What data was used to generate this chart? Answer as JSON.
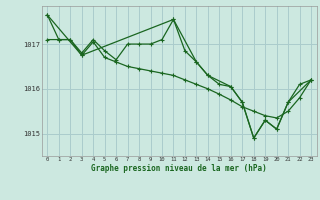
{
  "title": "Graphe pression niveau de la mer (hPa)",
  "bg_color": "#cce8e0",
  "grid_color": "#aacccc",
  "line_color": "#1a6620",
  "xlim": [
    -0.5,
    23.5
  ],
  "ylim": [
    1014.5,
    1017.85
  ],
  "yticks": [
    1015,
    1016,
    1017
  ],
  "xticks": [
    0,
    1,
    2,
    3,
    4,
    5,
    6,
    7,
    8,
    9,
    10,
    11,
    12,
    13,
    14,
    15,
    16,
    17,
    18,
    19,
    20,
    21,
    22,
    23
  ],
  "series1_x": [
    0,
    1,
    2,
    3,
    4,
    5,
    6,
    7,
    8,
    9,
    10,
    11,
    12,
    13,
    14,
    15,
    16,
    17,
    18,
    19,
    20,
    21,
    22,
    23
  ],
  "series1_y": [
    1017.65,
    1017.1,
    1017.1,
    1016.8,
    1017.1,
    1016.85,
    1016.65,
    1017.0,
    1017.0,
    1017.0,
    1017.1,
    1017.55,
    1016.85,
    1016.6,
    1016.3,
    1016.1,
    1016.05,
    1015.7,
    1014.9,
    1015.3,
    1015.1,
    1015.7,
    1016.1,
    1016.2
  ],
  "series2_x": [
    0,
    1,
    2,
    3,
    4,
    5,
    6,
    7,
    8,
    9,
    10,
    11,
    12,
    13,
    14,
    15,
    16,
    17,
    18,
    19,
    20,
    21,
    22,
    23
  ],
  "series2_y": [
    1017.1,
    1017.1,
    1017.1,
    1016.75,
    1017.05,
    1016.7,
    1016.6,
    1016.5,
    1016.45,
    1016.4,
    1016.35,
    1016.3,
    1016.2,
    1016.1,
    1016.0,
    1015.88,
    1015.75,
    1015.6,
    1015.5,
    1015.4,
    1015.35,
    1015.5,
    1015.8,
    1016.2
  ],
  "series3_x": [
    0,
    3,
    11,
    13,
    14,
    16,
    17,
    18,
    19,
    20,
    21,
    23
  ],
  "series3_y": [
    1017.65,
    1016.75,
    1017.55,
    1016.6,
    1016.3,
    1016.05,
    1015.7,
    1014.9,
    1015.3,
    1015.1,
    1015.7,
    1016.2
  ]
}
